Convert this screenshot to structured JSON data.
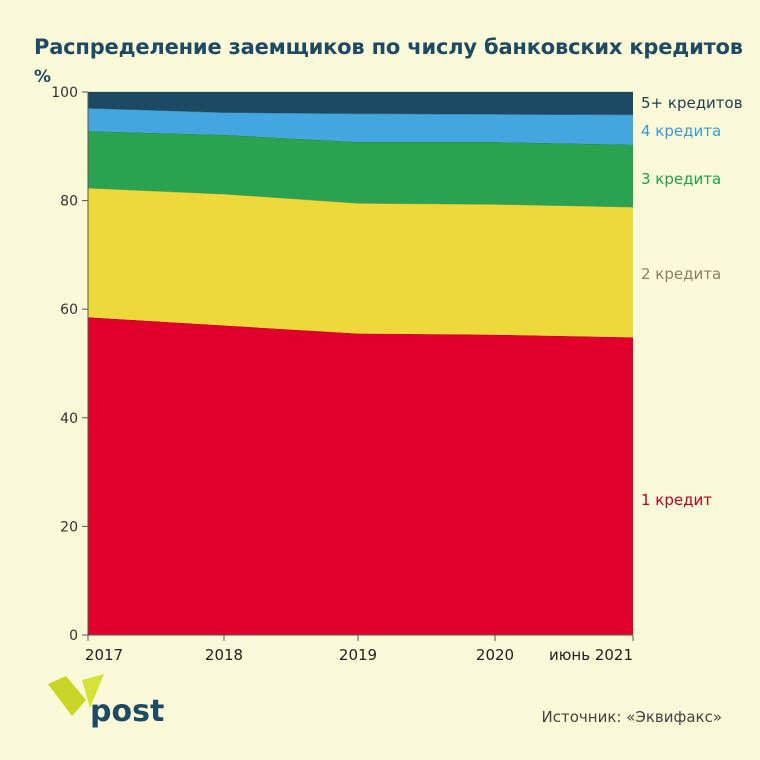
{
  "chart_data": {
    "type": "area",
    "stacked": true,
    "title": "Распределение заемщиков по числу банковских кредитов",
    "ylabel": "%",
    "ylim": [
      0,
      100
    ],
    "yticks": [
      "0",
      "20",
      "40",
      "60",
      "80",
      "100"
    ],
    "categories": [
      "2017",
      "2018",
      "2019",
      "2020",
      "июнь 2021"
    ],
    "series": [
      {
        "name": "1 кредит",
        "color": "#e0002a",
        "label_color": "#b8001e",
        "values": [
          58.5,
          57.0,
          55.5,
          55.3,
          54.8
        ]
      },
      {
        "name": "2 кредита",
        "color": "#efd93a",
        "label_color": "#8a7d6a",
        "values": [
          23.8,
          24.2,
          24.0,
          24.0,
          24.0
        ]
      },
      {
        "name": "3 кредита",
        "color": "#2aa24f",
        "label_color": "#22a04a",
        "values": [
          10.5,
          10.9,
          11.3,
          11.5,
          11.5
        ]
      },
      {
        "name": "4 кредита",
        "color": "#43a6e0",
        "label_color": "#3d9ad6",
        "values": [
          4.2,
          4.1,
          5.2,
          5.1,
          5.5
        ]
      },
      {
        "name": "5+ кредитов",
        "color": "#1d4a63",
        "label_color": "#1d3d52",
        "values": [
          3.0,
          3.8,
          4.0,
          4.1,
          4.2
        ]
      }
    ]
  },
  "source": "Источник: «Эквифакс»",
  "logo": {
    "text": "post",
    "mark_color": "#c9d626"
  }
}
